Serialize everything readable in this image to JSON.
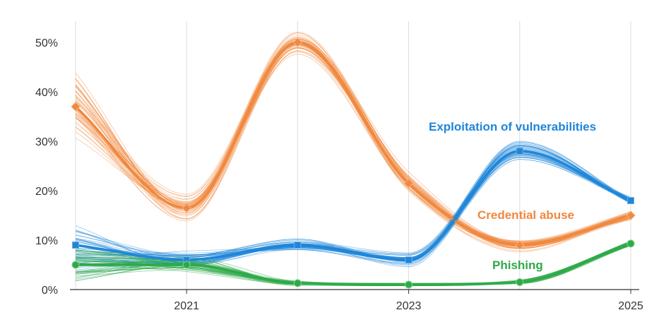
{
  "chart_data": {
    "type": "line",
    "x": [
      2020,
      2021,
      2022,
      2023,
      2024,
      2025
    ],
    "x_tick_labels": [
      "2021",
      "2023",
      "2025"
    ],
    "x_tick_values": [
      2021,
      2023,
      2025
    ],
    "y_ticks": [
      0,
      10,
      20,
      30,
      40,
      50
    ],
    "y_tick_labels": [
      "0%",
      "10%",
      "20%",
      "30%",
      "40%",
      "50%"
    ],
    "ylim": [
      0,
      54
    ],
    "grid": "vertical",
    "series": [
      {
        "name": "Credential abuse",
        "color": "#f0883e",
        "values": [
          37,
          16.5,
          50,
          21.5,
          9,
          15
        ],
        "marker": "diamond"
      },
      {
        "name": "Exploitation of vulnerabilities",
        "color": "#1f86d9",
        "values": [
          9,
          6,
          9,
          6,
          28,
          18
        ],
        "marker": "square"
      },
      {
        "name": "Phishing",
        "color": "#2eaa48",
        "values": [
          5,
          5,
          1.3,
          1,
          1.5,
          9.3
        ],
        "marker": "circle"
      }
    ]
  }
}
